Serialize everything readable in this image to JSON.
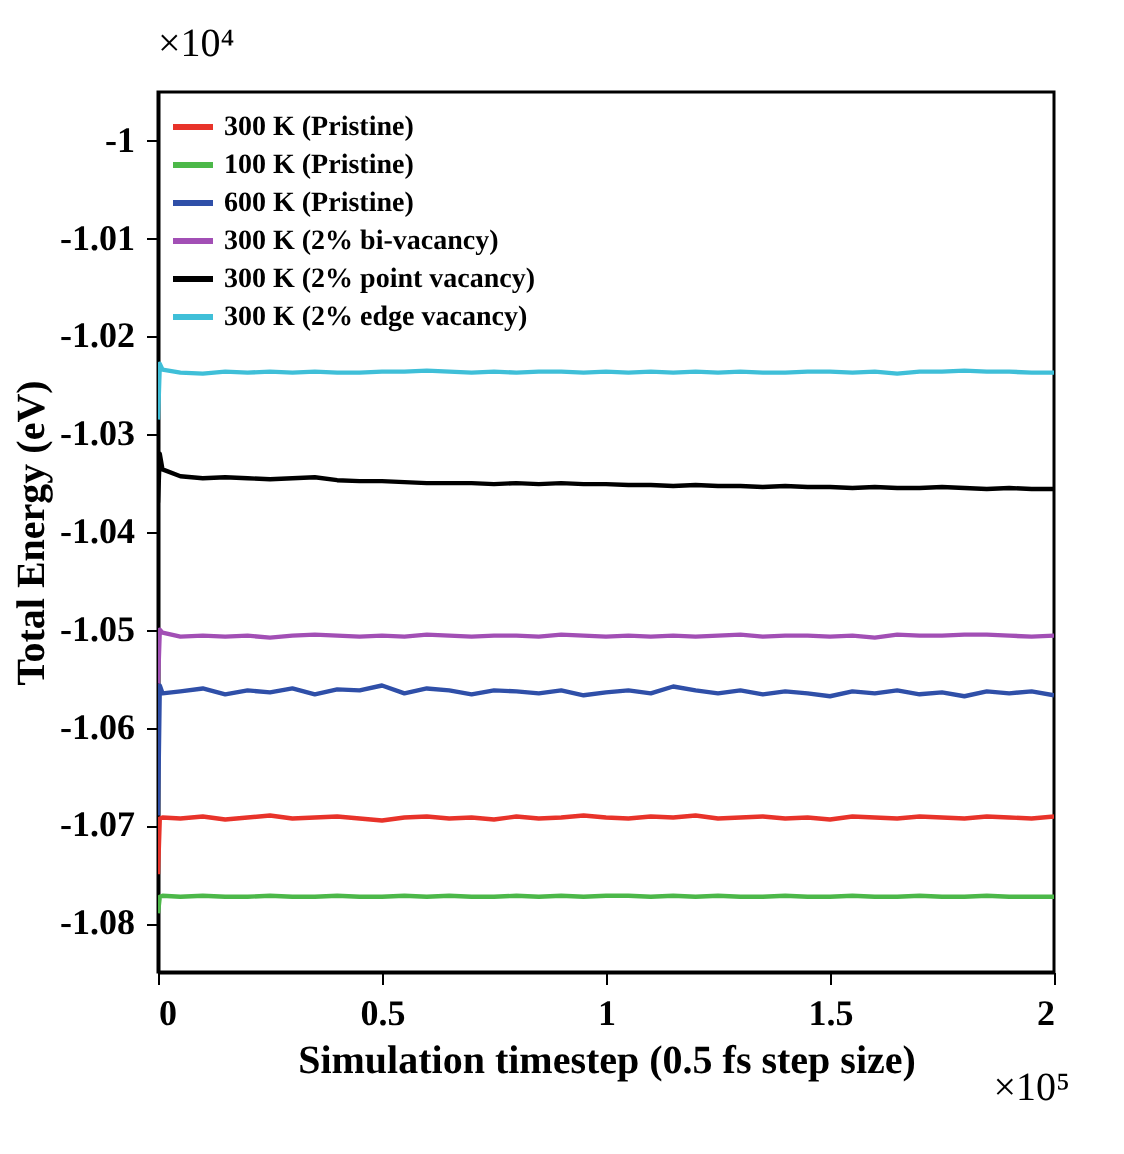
{
  "chart_data": {
    "type": "line",
    "xlabel": "Simulation timestep (0.5 fs step size)",
    "ylabel": "Total Energy (eV)",
    "annotations": [
      "×10⁴",
      "×10⁵"
    ],
    "x": [
      0,
      0.004,
      0.01,
      0.05,
      0.1,
      0.15,
      0.2,
      0.25,
      0.3,
      0.35,
      0.4,
      0.45,
      0.5,
      0.55,
      0.6,
      0.65,
      0.7,
      0.75,
      0.8,
      0.85,
      0.9,
      0.95,
      1.0,
      1.05,
      1.1,
      1.15,
      1.2,
      1.25,
      1.3,
      1.35,
      1.4,
      1.45,
      1.5,
      1.55,
      1.6,
      1.65,
      1.7,
      1.75,
      1.8,
      1.85,
      1.9,
      1.95,
      2.0
    ],
    "series": [
      {
        "name": "300 K (Pristine)",
        "color": "#e8332a",
        "values": [
          -1.075,
          -1.0693,
          -1.0692,
          -1.0693,
          -1.0691,
          -1.0694,
          -1.0692,
          -1.069,
          -1.0693,
          -1.0692,
          -1.0691,
          -1.0693,
          -1.0695,
          -1.0692,
          -1.0691,
          -1.0693,
          -1.0692,
          -1.0694,
          -1.0691,
          -1.0693,
          -1.0692,
          -1.069,
          -1.0692,
          -1.0693,
          -1.0691,
          -1.0692,
          -1.069,
          -1.0693,
          -1.0692,
          -1.0691,
          -1.0693,
          -1.0692,
          -1.0694,
          -1.0691,
          -1.0692,
          -1.0693,
          -1.0691,
          -1.0692,
          -1.0693,
          -1.0691,
          -1.0692,
          -1.0693,
          -1.0691
        ]
      },
      {
        "name": "100 K (Pristine)",
        "color": "#4cb849",
        "values": [
          -1.079,
          -1.0773,
          -1.0772,
          -1.0773,
          -1.0772,
          -1.0773,
          -1.0773,
          -1.0772,
          -1.0773,
          -1.0773,
          -1.0772,
          -1.0773,
          -1.0773,
          -1.0772,
          -1.0773,
          -1.0772,
          -1.0773,
          -1.0773,
          -1.0772,
          -1.0773,
          -1.0772,
          -1.0773,
          -1.0772,
          -1.0772,
          -1.0773,
          -1.0772,
          -1.0773,
          -1.0772,
          -1.0773,
          -1.0773,
          -1.0772,
          -1.0773,
          -1.0773,
          -1.0772,
          -1.0773,
          -1.0773,
          -1.0772,
          -1.0773,
          -1.0773,
          -1.0772,
          -1.0773,
          -1.0773,
          -1.0773
        ]
      },
      {
        "name": "600 K (Pristine)",
        "color": "#2f4fa8",
        "values": [
          -1.069,
          -1.0557,
          -1.0565,
          -1.0563,
          -1.056,
          -1.0566,
          -1.0562,
          -1.0564,
          -1.056,
          -1.0566,
          -1.0561,
          -1.0562,
          -1.0557,
          -1.0565,
          -1.056,
          -1.0562,
          -1.0566,
          -1.0562,
          -1.0563,
          -1.0565,
          -1.0562,
          -1.0567,
          -1.0564,
          -1.0562,
          -1.0565,
          -1.0558,
          -1.0562,
          -1.0565,
          -1.0562,
          -1.0566,
          -1.0563,
          -1.0565,
          -1.0568,
          -1.0563,
          -1.0565,
          -1.0562,
          -1.0566,
          -1.0564,
          -1.0568,
          -1.0563,
          -1.0565,
          -1.0563,
          -1.0567
        ]
      },
      {
        "name": "300 K (2% bi-vacancy)",
        "color": "#a24fb5",
        "values": [
          -1.0555,
          -1.05,
          -1.0503,
          -1.0507,
          -1.0506,
          -1.0507,
          -1.0506,
          -1.0508,
          -1.0506,
          -1.0505,
          -1.0506,
          -1.0507,
          -1.0506,
          -1.0507,
          -1.0505,
          -1.0506,
          -1.0507,
          -1.0506,
          -1.0506,
          -1.0507,
          -1.0505,
          -1.0506,
          -1.0507,
          -1.0506,
          -1.0507,
          -1.0506,
          -1.0507,
          -1.0506,
          -1.0505,
          -1.0507,
          -1.0506,
          -1.0506,
          -1.0507,
          -1.0506,
          -1.0508,
          -1.0505,
          -1.0506,
          -1.0506,
          -1.0505,
          -1.0505,
          -1.0506,
          -1.0507,
          -1.0506
        ]
      },
      {
        "name": "300 K (2% point vacancy)",
        "color": "#000000",
        "values": [
          -1.037,
          -1.032,
          -1.0336,
          -1.0343,
          -1.0345,
          -1.0344,
          -1.0345,
          -1.0346,
          -1.0345,
          -1.0344,
          -1.0347,
          -1.0348,
          -1.0348,
          -1.0349,
          -1.035,
          -1.035,
          -1.035,
          -1.0351,
          -1.035,
          -1.0351,
          -1.035,
          -1.0351,
          -1.0351,
          -1.0352,
          -1.0352,
          -1.0353,
          -1.0352,
          -1.0353,
          -1.0353,
          -1.0354,
          -1.0353,
          -1.0354,
          -1.0354,
          -1.0355,
          -1.0354,
          -1.0355,
          -1.0355,
          -1.0354,
          -1.0355,
          -1.0356,
          -1.0355,
          -1.0356,
          -1.0356
        ]
      },
      {
        "name": "300 K (2% edge vacancy)",
        "color": "#3fbfd8",
        "values": [
          -1.0285,
          -1.0228,
          -1.0234,
          -1.0237,
          -1.0238,
          -1.0236,
          -1.0237,
          -1.0236,
          -1.0237,
          -1.0236,
          -1.0237,
          -1.0237,
          -1.0236,
          -1.0236,
          -1.0235,
          -1.0236,
          -1.0237,
          -1.0236,
          -1.0237,
          -1.0236,
          -1.0236,
          -1.0237,
          -1.0236,
          -1.0237,
          -1.0236,
          -1.0237,
          -1.0236,
          -1.0237,
          -1.0236,
          -1.0237,
          -1.0237,
          -1.0236,
          -1.0236,
          -1.0237,
          -1.0236,
          -1.0238,
          -1.0236,
          -1.0236,
          -1.0235,
          -1.0236,
          -1.0236,
          -1.0237,
          -1.0237
        ]
      }
    ],
    "xlim": [
      0,
      2
    ],
    "xticks": [
      0,
      0.5,
      1,
      1.5,
      2
    ],
    "ylim": [
      -1.085,
      -0.995
    ],
    "yticks": [
      -1,
      -1.01,
      -1.02,
      -1.03,
      -1.04,
      -1.05,
      -1.06,
      -1.07,
      -1.08
    ],
    "grid": false,
    "legend": "top left",
    "line_style": "solid",
    "marker": "none"
  }
}
